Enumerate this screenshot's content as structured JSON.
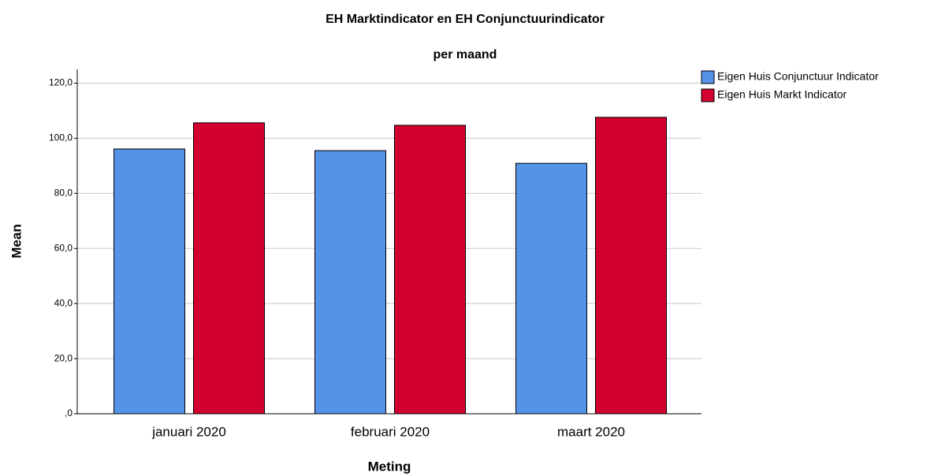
{
  "chart_data": {
    "type": "bar",
    "title": "EH Marktindicator en EH Conjunctuurindicator",
    "subtitle": "per maand",
    "xlabel": "Meting",
    "ylabel": "Mean",
    "categories": [
      "januari 2020",
      "februari 2020",
      "maart 2020"
    ],
    "series": [
      {
        "name": "Eigen Huis Conjunctuur Indicator",
        "color": "#5493e5",
        "values": [
          96.1,
          95.5,
          90.9
        ]
      },
      {
        "name": "Eigen Huis Markt Indicator",
        "color": "#d2002e",
        "values": [
          105.6,
          104.7,
          107.6
        ]
      }
    ],
    "ylim": [
      0,
      125
    ],
    "yticks": [
      {
        "value": 0,
        "label": ",0"
      },
      {
        "value": 20,
        "label": "20,0"
      },
      {
        "value": 40,
        "label": "40,0"
      },
      {
        "value": 60,
        "label": "60,0"
      },
      {
        "value": 80,
        "label": "80,0"
      },
      {
        "value": 100,
        "label": "100,0"
      },
      {
        "value": 120,
        "label": "120,0"
      }
    ],
    "grid": true,
    "legend": "right"
  }
}
